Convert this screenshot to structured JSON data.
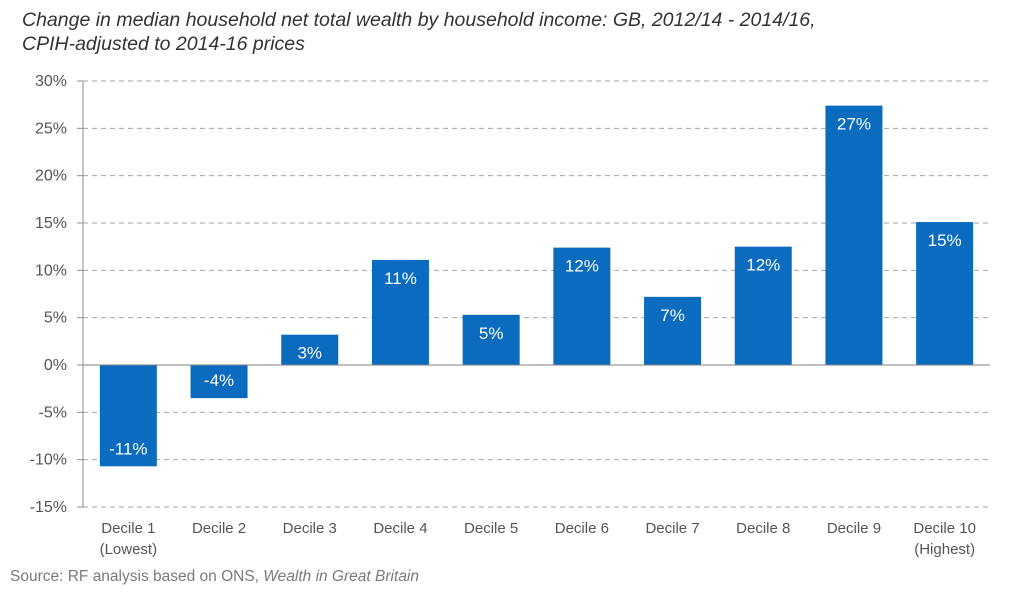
{
  "title_lines": [
    "Change in median household net total wealth by household income: GB, 2012/14 - 2014/16,",
    "CPIH-adjusted to 2014-16 prices"
  ],
  "source": {
    "prefix": "Source: RF analysis based on ONS, ",
    "italic": "Wealth in Great Britain"
  },
  "chart_data": {
    "type": "bar",
    "title": "Change in median household net total wealth by household income: GB, 2012/14 - 2014/16, CPIH-adjusted to 2014-16 prices",
    "categories": [
      [
        "Decile 1",
        "(Lowest)"
      ],
      [
        "Decile 2"
      ],
      [
        "Decile 3"
      ],
      [
        "Decile 4"
      ],
      [
        "Decile 5"
      ],
      [
        "Decile 6"
      ],
      [
        "Decile 7"
      ],
      [
        "Decile 8"
      ],
      [
        "Decile 9"
      ],
      [
        "Decile 10",
        "(Highest)"
      ]
    ],
    "values": [
      -10.7,
      -3.5,
      3.2,
      11.1,
      5.3,
      12.4,
      7.2,
      12.5,
      27.4,
      15.1
    ],
    "data_labels": [
      "-11%",
      "-4%",
      "3%",
      "11%",
      "5%",
      "12%",
      "7%",
      "12%",
      "27%",
      "15%"
    ],
    "ylim": [
      -15,
      30
    ],
    "yticks": [
      30,
      25,
      20,
      15,
      10,
      5,
      0,
      -5,
      -10,
      -15
    ],
    "ytick_labels": [
      "30%",
      "25%",
      "20%",
      "15%",
      "10%",
      "5%",
      "0%",
      "-5%",
      "-10%",
      "-15%"
    ],
    "xlabel": "",
    "ylabel": "",
    "grid": true,
    "bar_color": "#0a6bbf"
  }
}
